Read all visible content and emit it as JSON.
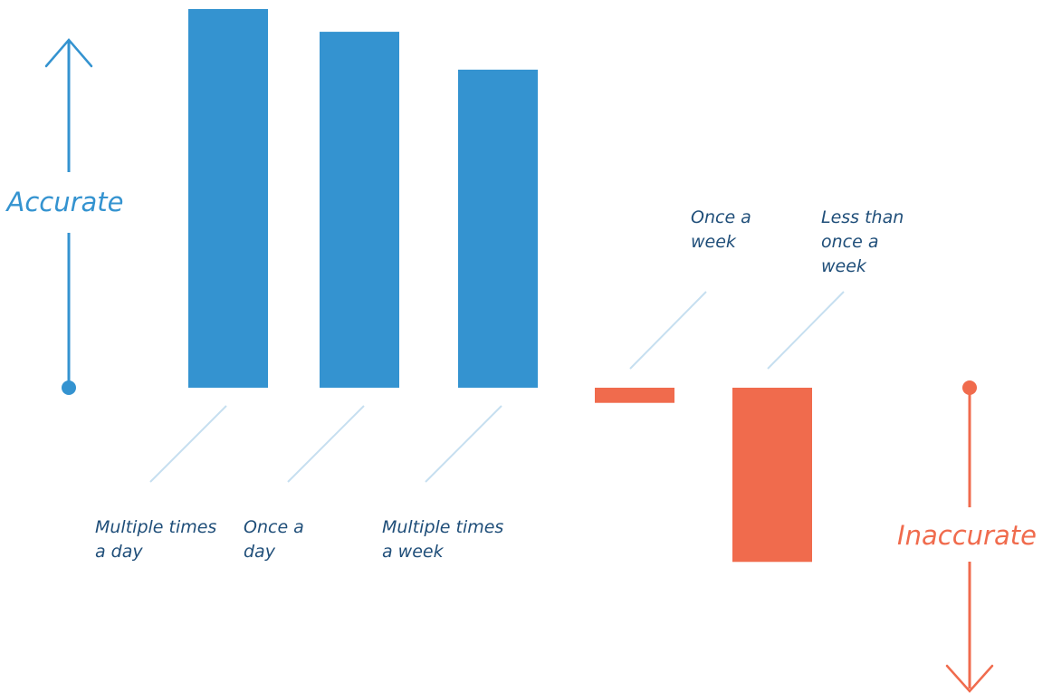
{
  "chart_data": {
    "type": "bar",
    "categories": [
      "Multiple times a day",
      "Once a day",
      "Multiple times a week",
      "Once a week",
      "Less than once a week"
    ],
    "values": [
      100,
      94,
      84,
      -4,
      -46
    ],
    "ylim": [
      -50,
      100
    ],
    "grid": false,
    "legend": "none",
    "up_axis_label": "Accurate",
    "down_axis_label": "Inaccurate"
  },
  "colors": {
    "positive": "#3493D0",
    "negative": "#F06B4D",
    "leader": "#C6DFF0",
    "label_text": "#1F4E79"
  }
}
